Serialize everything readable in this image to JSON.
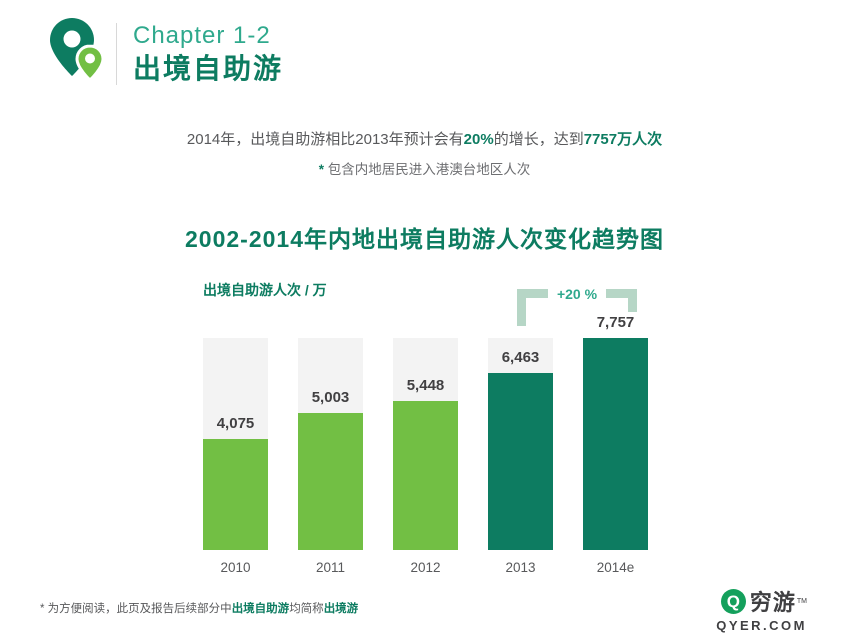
{
  "colors": {
    "accent_dark": "#0d7c61",
    "accent_light": "#72bf44",
    "chapter_teal": "#2fa98d",
    "track_gray": "#f3f3f3",
    "text_gray": "#58595b",
    "annotation_green": "#b6d6c6",
    "brand_green": "#14a05c"
  },
  "header": {
    "chapter": "Chapter 1-2",
    "title": "出境自助游"
  },
  "intro": {
    "seg1": "2014年，出境自助游相比2013年预计会有",
    "highlight1": "20%",
    "seg2": "的增长，达到",
    "highlight2": "7757万人次",
    "note_star": "*",
    "note_text": " 包含内地居民进入港澳台地区人次"
  },
  "chart_data": {
    "type": "bar",
    "title": "2002-2014年内地出境自助游人次变化趋势图",
    "ylabel": "出境自助游人次 / 万",
    "categories": [
      "2010",
      "2011",
      "2012",
      "2013",
      "2014e"
    ],
    "values": [
      4075,
      5003,
      5448,
      6463,
      7757
    ],
    "value_labels": [
      "4,075",
      "5,003",
      "5,448",
      "6,463",
      "7,757"
    ],
    "bar_styles": [
      "light",
      "light",
      "light",
      "dark",
      "dark"
    ],
    "ylim": [
      0,
      7757
    ],
    "grid": false,
    "legend": "none",
    "annotation": {
      "text": "+20 %",
      "between": [
        "2013",
        "2014e"
      ]
    }
  },
  "footer": {
    "star": "*",
    "seg1": " 为方便阅读，此页及报告后续部分中",
    "bold1": "出境自助游",
    "seg2": "均简称",
    "bold2": "出境游",
    "brand_name": "穷游",
    "brand_tm": "TM",
    "brand_domain": "QYER.COM"
  }
}
